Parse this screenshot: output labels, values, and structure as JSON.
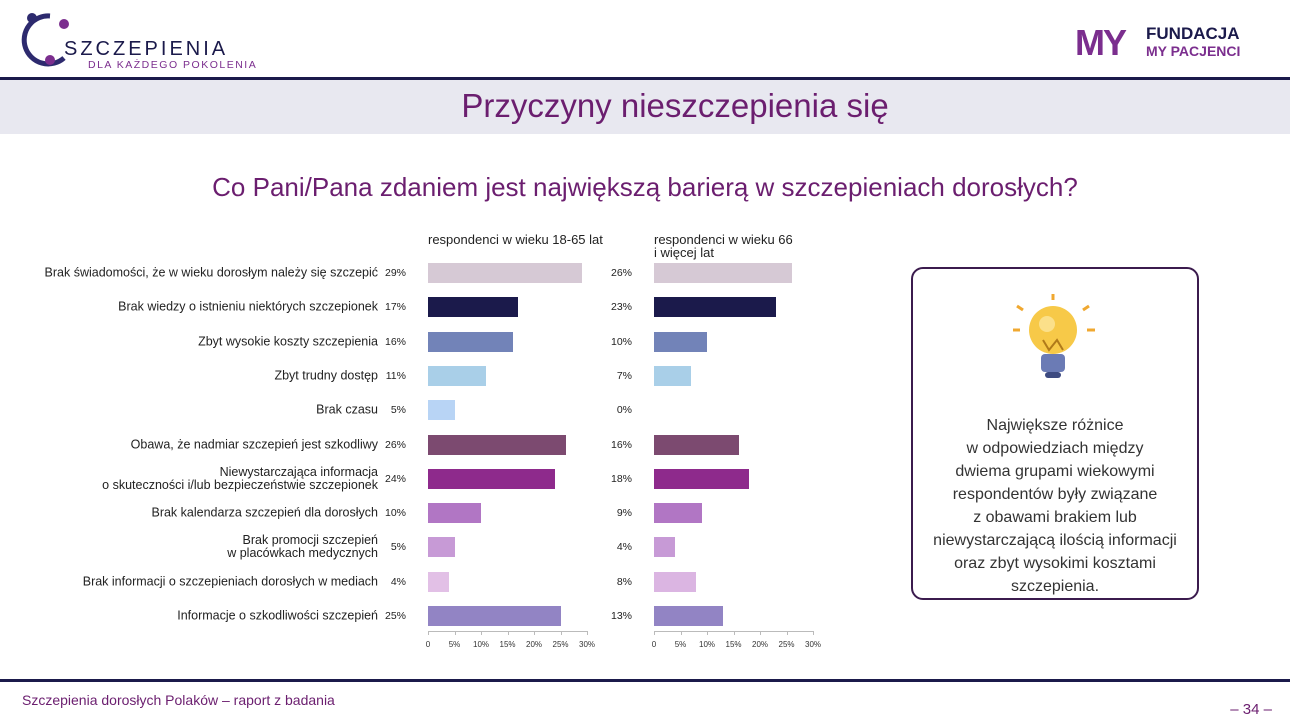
{
  "header": {
    "logo_left": {
      "title": "SZCZEPIENIA",
      "subtitle": "DLA KAŻDEGO POKOLENIA"
    },
    "logo_right": {
      "mark": "MY",
      "line1": "FUNDACJA",
      "line2": "MY PACJENCI"
    },
    "title": "Przyczyny nieszczepienia się"
  },
  "chart_data": {
    "type": "bar",
    "orientation": "horizontal",
    "layout": "panels",
    "title": "Co Pani/Pana zdaniem jest największą barierą w szczepieniach dorosłych?",
    "categories": [
      "Brak świadomości, że w wieku dorosłym należy się szczepić",
      "Brak wiedzy o istnieniu niektórych szczepionek",
      "Zbyt wysokie koszty szczepienia",
      "Zbyt trudny dostęp",
      "Brak czasu",
      "Obawa, że nadmiar szczepień jest szkodliwy",
      "Niewystarczająca informacja\no skuteczności i/lub bezpieczeństwie szczepionek",
      "Brak kalendarza szczepień dla dorosłych",
      "Brak promocji szczepień\nw placówkach medycznych",
      "Brak informacji o szczepieniach dorosłych w mediach",
      "Informacje o szkodliwości szczepień"
    ],
    "series": [
      {
        "name": "respondenci w wieku 18-65 lat",
        "values": [
          29,
          17,
          16,
          11,
          5,
          26,
          24,
          10,
          5,
          4,
          25
        ],
        "value_labels": [
          "29%",
          "17%",
          "16%",
          "11%",
          "5%",
          "26%",
          "24%",
          "10%",
          "5%",
          "4%",
          "25%"
        ],
        "colors": [
          "#d6c9d5",
          "#1b1a4b",
          "#7283b8",
          "#a9cfe8",
          "#b8d4f5",
          "#7c4a70",
          "#8e2a8c",
          "#b176c4",
          "#c79ad6",
          "#e2c0e6",
          "#9284c4"
        ]
      },
      {
        "name": "respondenci w wieku 66\ni więcej lat",
        "values": [
          26,
          23,
          10,
          7,
          0,
          16,
          18,
          9,
          4,
          8,
          13
        ],
        "value_labels": [
          "26%",
          "23%",
          "10%",
          "7%",
          "0%",
          "16%",
          "18%",
          "9%",
          "4%",
          "8%",
          "13%"
        ],
        "colors": [
          "#d6c9d5",
          "#1b1a4b",
          "#7283b8",
          "#a9cfe8",
          "#b8d4f5",
          "#7c4a70",
          "#8e2a8c",
          "#b176c4",
          "#c79ad6",
          "#dbb5e2",
          "#9284c4"
        ]
      }
    ],
    "xlim": [
      0,
      30
    ],
    "xticks": [
      0,
      {
        "value": 5,
        "label": "5%"
      },
      {
        "value": 10,
        "label": "10%"
      },
      {
        "value": 15,
        "label": "15%"
      },
      {
        "value": 20,
        "label": "20%"
      },
      {
        "value": 25,
        "label": "25%"
      },
      {
        "value": 30,
        "label": "30%"
      }
    ]
  },
  "callout": "Największe różnice\nw odpowiedziach między\ndwiema grupami wiekowymi\nrespondentów były związane\nz obawami brakiem lub\nniewystarczającą ilością informacji\noraz zbyt wysokimi kosztami\nszczepienia.",
  "footer": {
    "text": "Szczepienia dorosłych Polaków – raport z badania",
    "page": "– 34 –"
  }
}
